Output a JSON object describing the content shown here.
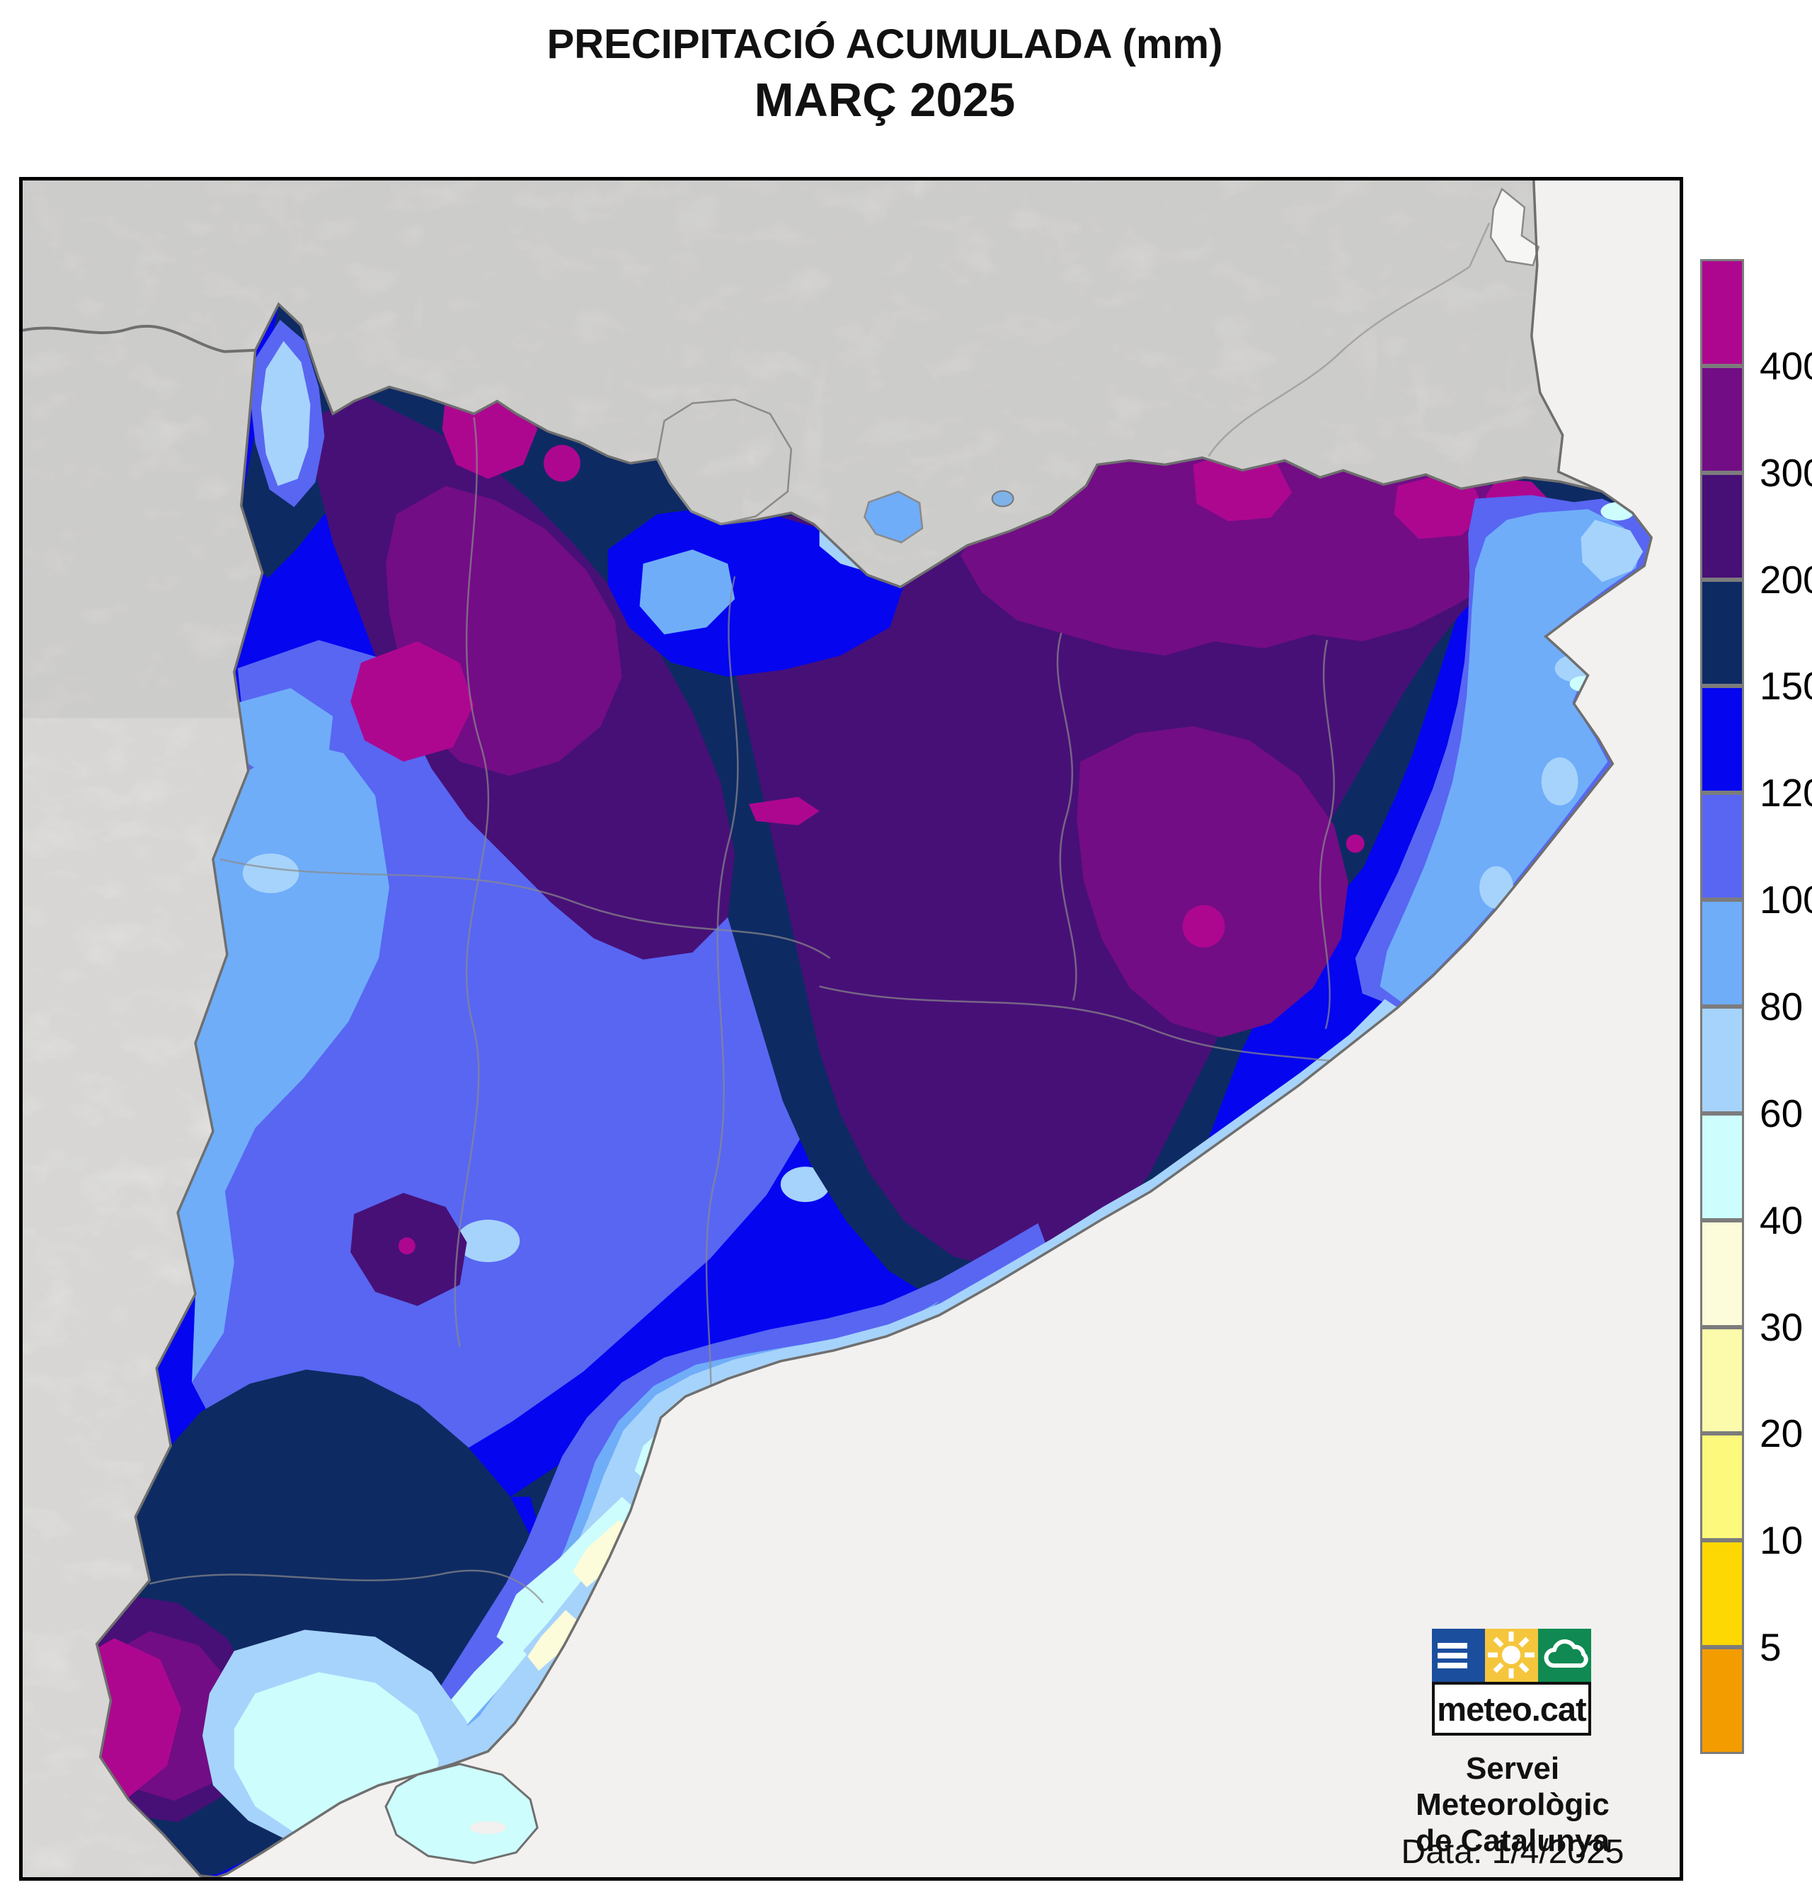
{
  "title": {
    "line1": "PRECIPITACIÓ ACUMULADA (mm)",
    "line2": "MARÇ 2025"
  },
  "legend": {
    "unit": "mm",
    "tick_labels": [
      "400",
      "300",
      "200",
      "150",
      "120",
      "100",
      "80",
      "60",
      "40",
      "30",
      "20",
      "10",
      "5"
    ],
    "bands": [
      {
        "range": "> 400",
        "color": "#ad0790"
      },
      {
        "range": "300-400",
        "color": "#720d85"
      },
      {
        "range": "200-300",
        "color": "#471077"
      },
      {
        "range": "150-200",
        "color": "#0e2a63"
      },
      {
        "range": "120-150",
        "color": "#0505f0"
      },
      {
        "range": "100-120",
        "color": "#5866f2"
      },
      {
        "range": "80-100",
        "color": "#6fadf9"
      },
      {
        "range": "60-80",
        "color": "#a6d3fb"
      },
      {
        "range": "40-60",
        "color": "#cdfdfd"
      },
      {
        "range": "30-40",
        "color": "#fcfbda"
      },
      {
        "range": "20-30",
        "color": "#fcfbac"
      },
      {
        "range": "10-20",
        "color": "#fcf97c"
      },
      {
        "range": "5-10",
        "color": "#fed802"
      },
      {
        "range": "< 5",
        "color": "#f39c00"
      }
    ]
  },
  "map": {
    "region": "Catalunya",
    "colors": {
      "land": "#e9e8e5",
      "sea": "#f2f1ef",
      "border": "#6f6f6f",
      "comarca": "#8a8a8a",
      "lake": "#7fb2e8",
      "frame": "#000000"
    }
  },
  "branding": {
    "logo_text": "meteo.cat",
    "org_line1": "Servei Meteorològic",
    "org_line2": "de Catalunya",
    "logo_tiles": [
      {
        "name": "menu-bars",
        "color": "#1c4e9e"
      },
      {
        "name": "sun",
        "color": "#f5c63c"
      },
      {
        "name": "cloud",
        "color": "#108a52"
      }
    ]
  },
  "footer": {
    "date_text": "Data: 1/4/2025"
  }
}
